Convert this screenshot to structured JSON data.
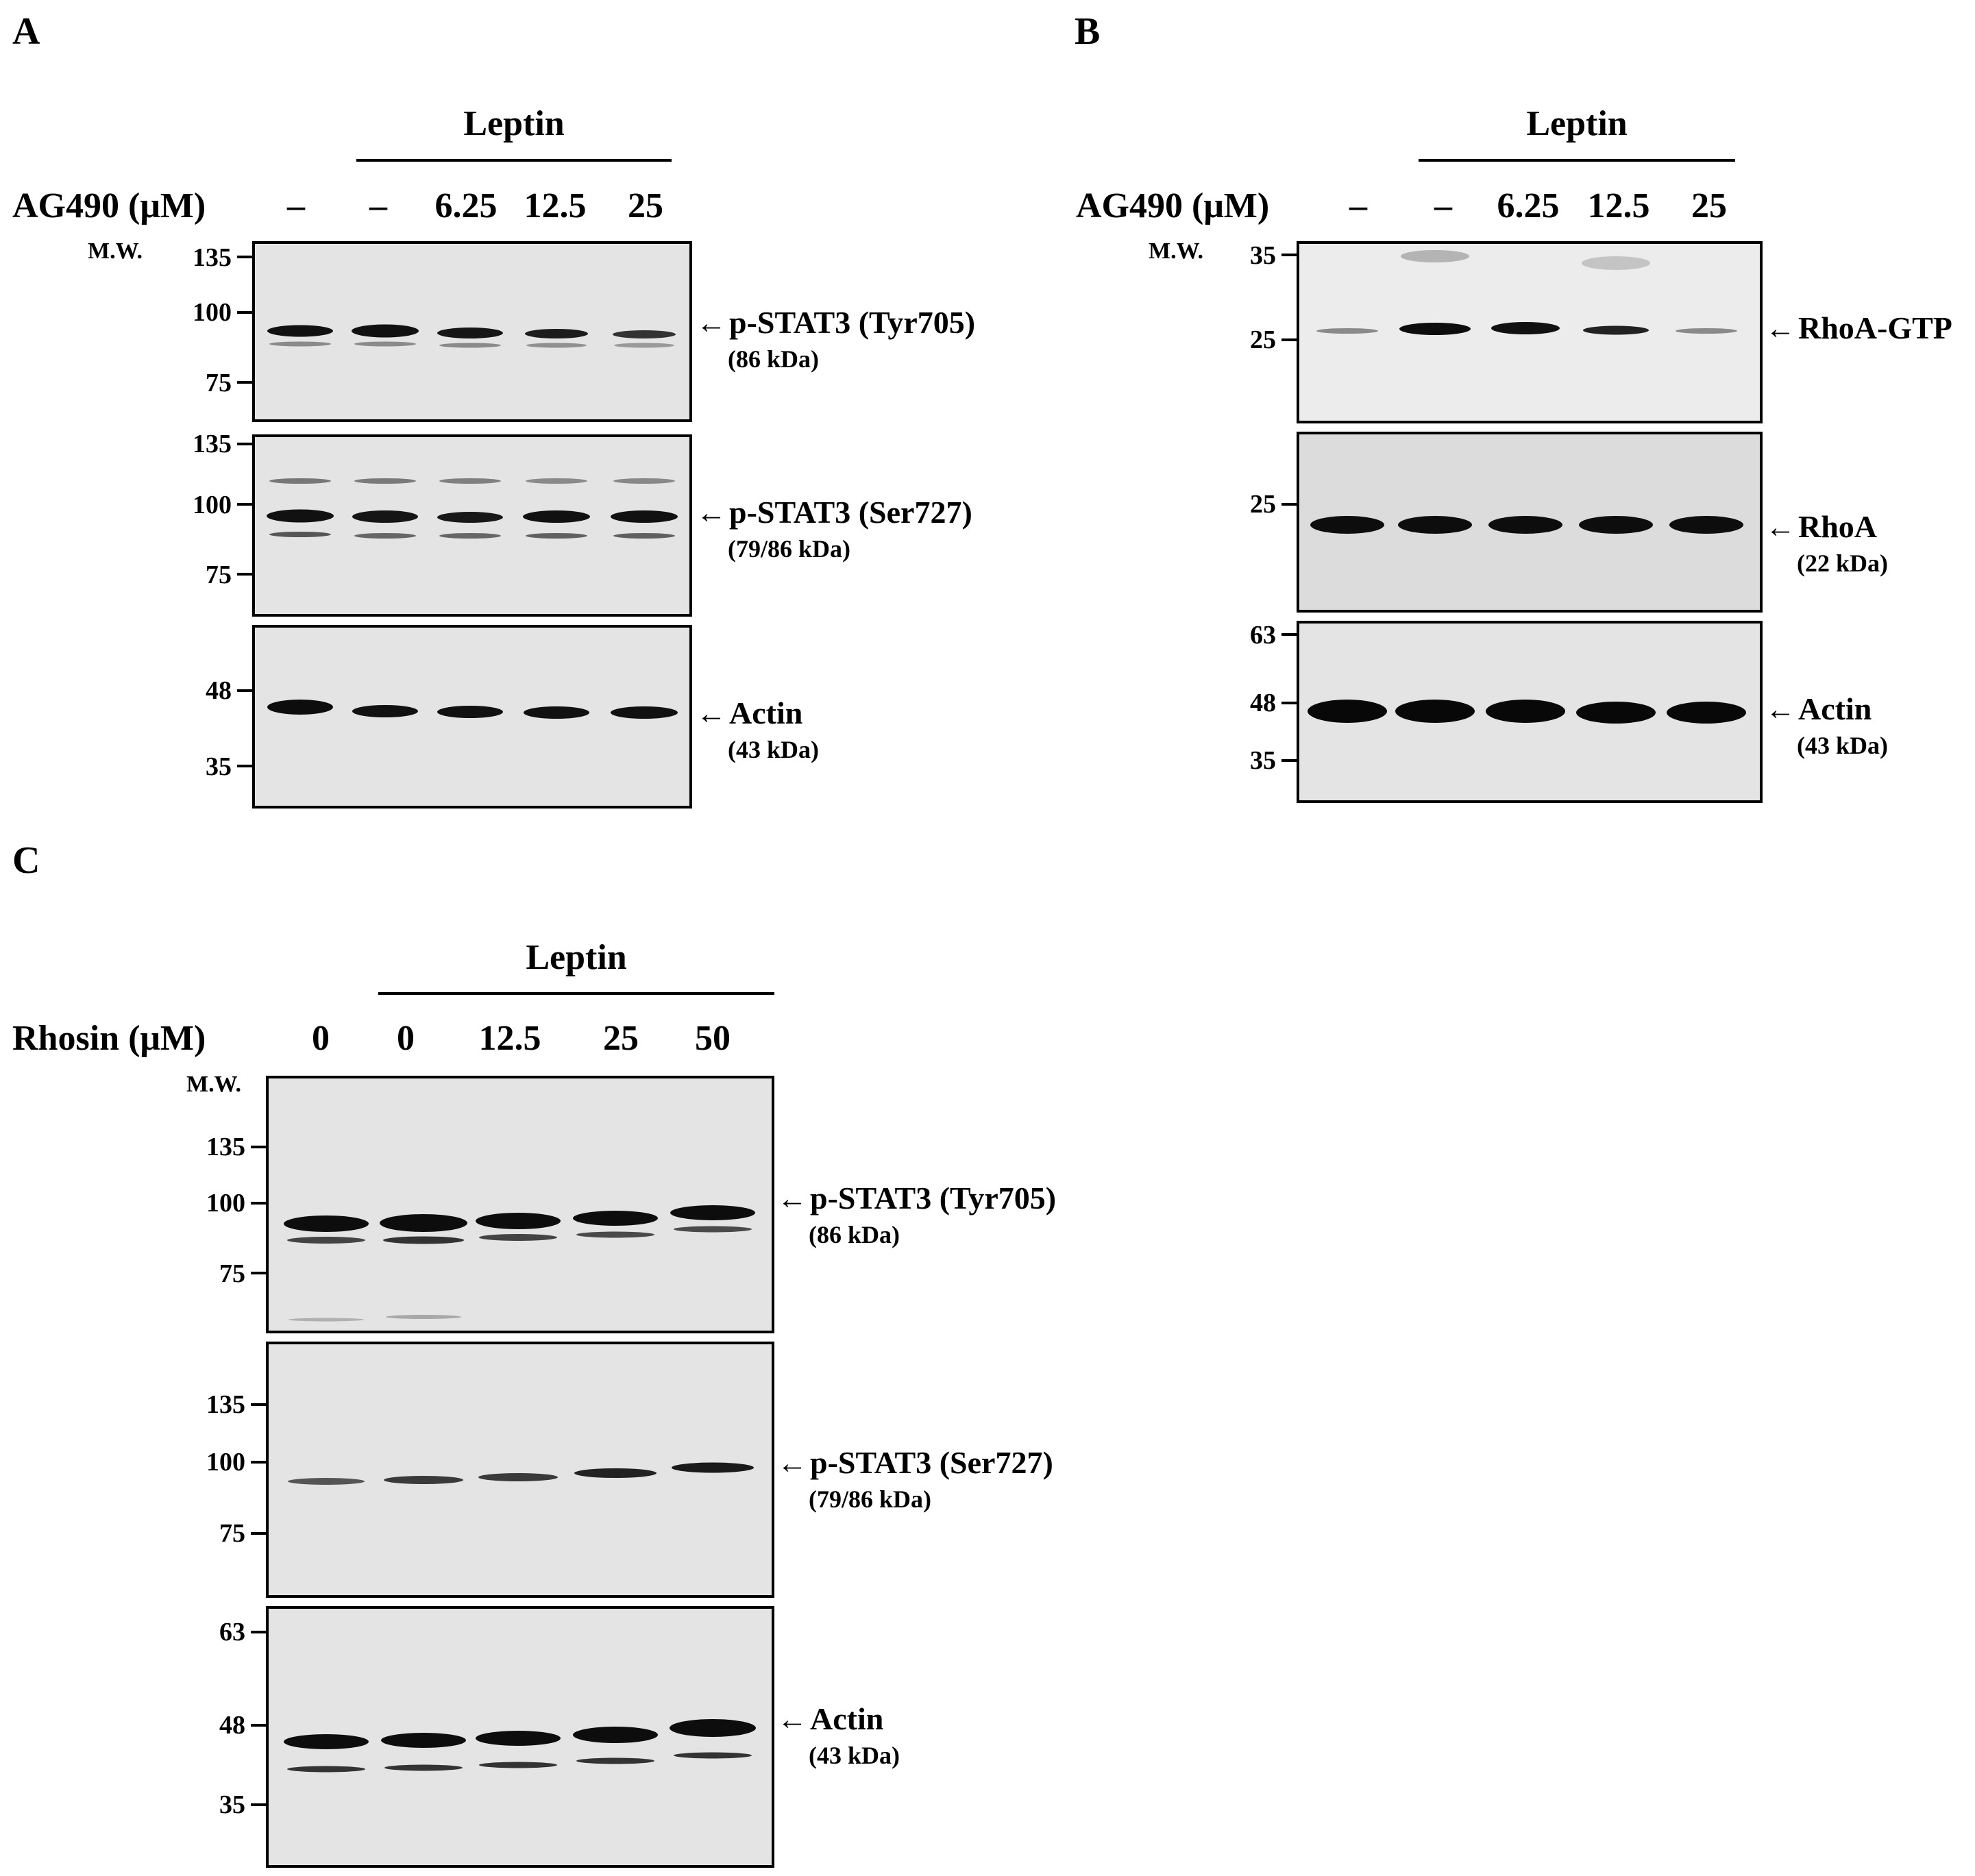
{
  "panels": {
    "A": {
      "letter": "A",
      "group_label": "Leptin",
      "treatment_label": "AG490 (μM)",
      "lanes": [
        "–",
        "–",
        "6.25",
        "12.5",
        "25"
      ],
      "mw_title": "M.W.",
      "blots": [
        {
          "target": "p-STAT3 (Tyr705)",
          "kda": "(86 kDa)",
          "markers": [
            "135",
            "100",
            "75"
          ]
        },
        {
          "target": "p-STAT3 (Ser727)",
          "kda": "(79/86 kDa)",
          "markers": [
            "135",
            "100",
            "75"
          ]
        },
        {
          "target": "Actin",
          "kda": "(43 kDa)",
          "markers": [
            "48",
            "35"
          ]
        }
      ]
    },
    "B": {
      "letter": "B",
      "group_label": "Leptin",
      "treatment_label": "AG490 (μM)",
      "lanes": [
        "–",
        "–",
        "6.25",
        "12.5",
        "25"
      ],
      "mw_title": "M.W.",
      "blots": [
        {
          "target": "RhoA-GTP",
          "kda": "",
          "markers": [
            "35",
            "25"
          ]
        },
        {
          "target": "RhoA",
          "kda": "(22 kDa)",
          "markers": [
            "25"
          ]
        },
        {
          "target": "Actin",
          "kda": "(43 kDa)",
          "markers": [
            "63",
            "48",
            "35"
          ]
        }
      ]
    },
    "C": {
      "letter": "C",
      "group_label": "Leptin",
      "treatment_label": "Rhosin (μM)",
      "lanes": [
        "0",
        "0",
        "12.5",
        "25",
        "50"
      ],
      "mw_title": "M.W.",
      "blots": [
        {
          "target": "p-STAT3 (Tyr705)",
          "kda": "(86 kDa)",
          "markers": [
            "135",
            "100",
            "75"
          ]
        },
        {
          "target": "p-STAT3 (Ser727)",
          "kda": "(79/86 kDa)",
          "markers": [
            "135",
            "100",
            "75"
          ]
        },
        {
          "target": "Actin",
          "kda": "(43 kDa)",
          "markers": [
            "63",
            "48",
            "35"
          ]
        }
      ]
    }
  },
  "arrow_glyph": "←",
  "colors": {
    "band": "#111111",
    "blot_bg": "#e4e4e4"
  }
}
